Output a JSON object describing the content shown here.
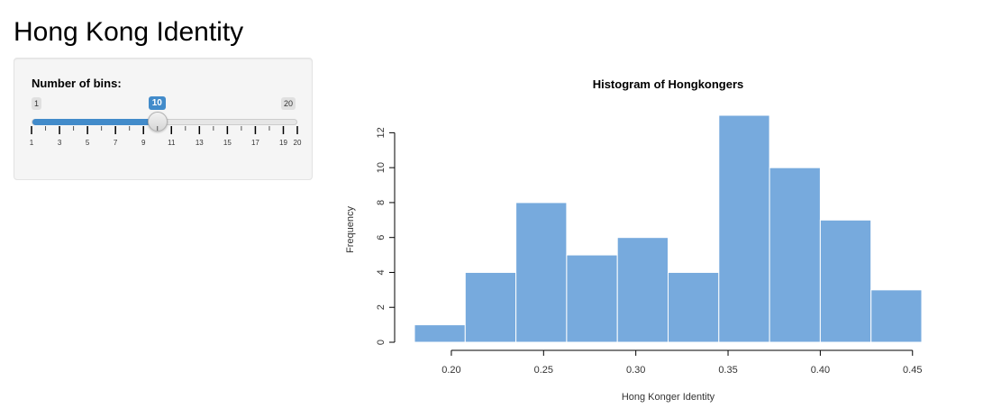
{
  "page": {
    "title": "Hong Kong Identity"
  },
  "sidebar": {
    "slider": {
      "label": "Number of bins:",
      "min": 1,
      "max": 20,
      "value": 10,
      "min_label": "1",
      "max_label": "20",
      "value_label": "10",
      "grid_labels": [
        "1",
        "3",
        "5",
        "7",
        "9",
        "11",
        "13",
        "15",
        "17",
        "19",
        "20"
      ],
      "accent_color": "#428bca"
    }
  },
  "chart_data": {
    "type": "bar",
    "title": "Histogram of Hongkongers",
    "xlabel": "Hong Konger Identity",
    "ylabel": "Frequency",
    "bin_edges": [
      0.18,
      0.2075,
      0.235,
      0.2625,
      0.29,
      0.3175,
      0.345,
      0.3725,
      0.4,
      0.4275,
      0.455
    ],
    "values": [
      1,
      4,
      8,
      5,
      6,
      4,
      13,
      10,
      7,
      3
    ],
    "xticks": [
      0.2,
      0.25,
      0.3,
      0.35,
      0.4,
      0.45
    ],
    "xtick_labels": [
      "0.20",
      "0.25",
      "0.30",
      "0.35",
      "0.40",
      "0.45"
    ],
    "yticks": [
      0,
      2,
      4,
      6,
      8,
      10,
      12
    ],
    "ytick_labels": [
      "0",
      "2",
      "4",
      "6",
      "8",
      "10",
      "12"
    ],
    "xlim": [
      0.18,
      0.455
    ],
    "ylim": [
      0,
      13
    ],
    "bar_color": "#77aadd",
    "grid": false
  }
}
